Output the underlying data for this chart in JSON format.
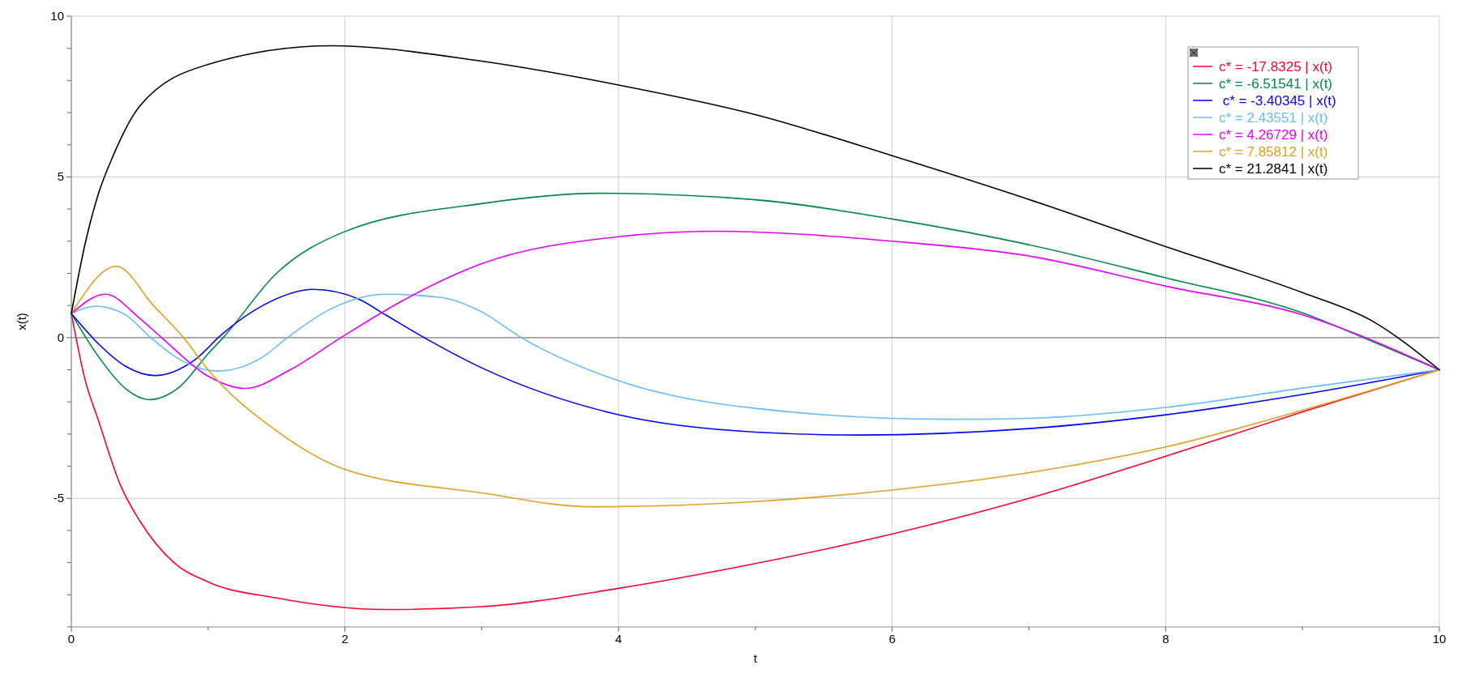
{
  "chart_data": {
    "type": "line",
    "xlabel": "t",
    "ylabel": "x(t)",
    "xlim": [
      0,
      10
    ],
    "ylim": [
      -9,
      10
    ],
    "xticks": [
      0,
      {
        "value": 1,
        "label": null
      },
      2,
      {
        "value": 3,
        "label": null
      },
      4,
      {
        "value": 5,
        "label": null
      },
      6,
      {
        "value": 7,
        "label": null
      },
      8,
      {
        "value": 9,
        "label": null
      },
      10
    ],
    "yticks": [
      {
        "value": -9,
        "label": null
      },
      {
        "value": -8,
        "label": null
      },
      {
        "value": -7,
        "label": null
      },
      {
        "value": -6,
        "label": null
      },
      -5,
      {
        "value": -4,
        "label": null
      },
      {
        "value": -3,
        "label": null
      },
      {
        "value": -2,
        "label": null
      },
      {
        "value": -1,
        "label": null
      },
      0,
      {
        "value": 1,
        "label": null
      },
      {
        "value": 2,
        "label": null
      },
      {
        "value": 3,
        "label": null
      },
      {
        "value": 4,
        "label": null
      },
      5,
      {
        "value": 6,
        "label": null
      },
      {
        "value": 7,
        "label": null
      },
      {
        "value": 8,
        "label": null
      },
      {
        "value": 9,
        "label": null
      },
      10
    ],
    "grid": true,
    "legend": "top right",
    "marker": "none",
    "line_style": "solid",
    "ref_lines": [
      {
        "axis": "y",
        "value": 0,
        "color": "#888888"
      }
    ],
    "series": [
      {
        "name": "c* = -17.8325 | x(t)",
        "color": "#ff0033",
        "x": [
          0,
          0.1,
          0.2,
          0.36,
          0.5,
          0.75,
          1,
          1.5,
          2.3,
          3,
          4,
          5,
          6,
          7,
          8,
          9,
          10
        ],
        "values": [
          0.75,
          -1.3,
          -2.6,
          -4.6,
          -5.7,
          -7,
          -7.6,
          -8.1,
          -8.46,
          -8.37,
          -7.8,
          -7.03,
          -6.11,
          -5,
          -3.69,
          -2.31,
          -1
        ]
      },
      {
        "name": "c* = -6.51541 | x(t)",
        "color": "#008844",
        "x": [
          0,
          0.2,
          0.4,
          0.57,
          0.8,
          1,
          1.11,
          1.5,
          2,
          3,
          3.85,
          5,
          6,
          7,
          8,
          9,
          9.5,
          10
        ],
        "values": [
          0.75,
          -0.6,
          -1.6,
          -1.93,
          -1.5,
          -0.5,
          0,
          2,
          3.3,
          4.17,
          4.49,
          4.29,
          3.69,
          2.89,
          1.86,
          0.77,
          -0.1,
          -1
        ]
      },
      {
        "name": " c* = -3.40345 | x(t)",
        "color": "#0000ff",
        "x": [
          0,
          0.2,
          0.4,
          0.61,
          0.9,
          1.1,
          1.4,
          1.77,
          2.1,
          2.3,
          2.58,
          3,
          4,
          5,
          5.75,
          7,
          8,
          9,
          10
        ],
        "values": [
          0.75,
          -0.2,
          -0.9,
          -1.18,
          -0.7,
          0.1,
          1,
          1.5,
          1.2,
          0.7,
          0,
          -0.94,
          -2.4,
          -2.94,
          -3.03,
          -2.83,
          -2.4,
          -1.77,
          -1
        ]
      },
      {
        "name": "c* = 2.43551 | x(t)",
        "color": "#66bbff",
        "x": [
          0,
          0.18,
          0.4,
          0.58,
          0.8,
          1.07,
          1.4,
          1.58,
          1.9,
          2.3,
          2.7,
          3,
          3.29,
          4,
          5,
          6.4,
          7,
          8,
          9,
          10
        ],
        "values": [
          0.75,
          0.98,
          0.7,
          0,
          -0.7,
          -1.04,
          -0.6,
          0,
          0.9,
          1.35,
          1.25,
          0.8,
          0,
          -1.34,
          -2.2,
          -2.54,
          -2.51,
          -2.17,
          -1.57,
          -1
        ]
      },
      {
        "name": "c* = 4.26729 | x(t)",
        "color": "#e600ff",
        "x": [
          0,
          0.25,
          0.5,
          0.66,
          1,
          1.27,
          1.6,
          1.97,
          2.4,
          3,
          4,
          4.7,
          6,
          7,
          8,
          9,
          10
        ],
        "values": [
          0.75,
          1.35,
          0.6,
          0,
          -1.2,
          -1.58,
          -1,
          0,
          1.1,
          2.3,
          3.14,
          3.31,
          3,
          2.54,
          1.6,
          0.71,
          -1
        ]
      },
      {
        "name": "c* = 7.85812 | x(t)",
        "color": "#e0a020",
        "x": [
          0,
          0.33,
          0.6,
          0.82,
          1,
          1.5,
          2,
          3,
          3.8,
          5,
          6,
          7,
          8,
          9,
          10
        ],
        "values": [
          0.75,
          2.22,
          1,
          0,
          -1,
          -2.9,
          -4.1,
          -4.83,
          -5.26,
          -5.1,
          -4.74,
          -4.2,
          -3.4,
          -2.26,
          -1
        ]
      },
      {
        "name": "c* = 21.2841 | x(t)",
        "color": "#000000",
        "x": [
          0,
          0.1,
          0.2,
          0.3,
          0.5,
          1,
          1.9,
          3,
          4,
          5,
          6,
          7,
          8,
          9,
          9.5,
          10
        ],
        "values": [
          0.75,
          2.9,
          4.5,
          5.6,
          7.2,
          8.5,
          9.08,
          8.6,
          7.86,
          6.94,
          5.66,
          4.3,
          2.83,
          1.4,
          0.54,
          -1
        ]
      }
    ]
  }
}
